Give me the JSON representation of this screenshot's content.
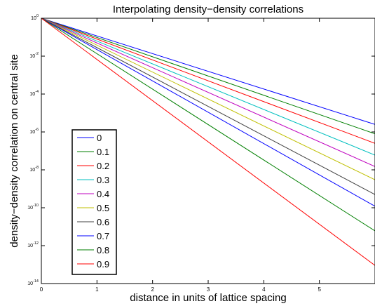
{
  "chart_data": {
    "type": "line",
    "title": "Interpolating density−density correlations",
    "xlabel": "distance in units of lattice spacing",
    "ylabel": "density−density correlation on central site",
    "xlim": [
      0,
      6
    ],
    "ylim": [
      1e-14,
      1
    ],
    "yscale": "log",
    "grid": false,
    "legend_position": "bottom-left",
    "x_ticks": [
      0,
      1,
      2,
      3,
      4,
      5
    ],
    "x_tick_labels": [
      "0",
      "1",
      "2",
      "3",
      "4",
      "5"
    ],
    "y_ticks": [
      1.0,
      0.01,
      0.0001,
      1e-06,
      1e-08,
      1e-10,
      1e-12,
      1e-14
    ],
    "y_tick_labels": [
      {
        "base": "10",
        "exp": "0"
      },
      {
        "base": "10",
        "exp": "-2"
      },
      {
        "base": "10",
        "exp": "-4"
      },
      {
        "base": "10",
        "exp": "-6"
      },
      {
        "base": "10",
        "exp": "-8"
      },
      {
        "base": "10",
        "exp": "-10"
      },
      {
        "base": "10",
        "exp": "-12"
      },
      {
        "base": "10",
        "exp": "-14"
      }
    ],
    "series": [
      {
        "name": "0",
        "color": "#0000ff",
        "x": [
          0,
          6
        ],
        "y": [
          1,
          2.5e-06
        ]
      },
      {
        "name": "0.1",
        "color": "#007f00",
        "x": [
          0,
          6
        ],
        "y": [
          1,
          8e-07
        ]
      },
      {
        "name": "0.2",
        "color": "#ff0000",
        "x": [
          0,
          6
        ],
        "y": [
          1,
          2.5e-07
        ]
      },
      {
        "name": "0.3",
        "color": "#00bfbf",
        "x": [
          0,
          6
        ],
        "y": [
          1,
          6e-08
        ]
      },
      {
        "name": "0.4",
        "color": "#bf00bf",
        "x": [
          0,
          6
        ],
        "y": [
          1,
          1.5e-08
        ]
      },
      {
        "name": "0.5",
        "color": "#bfbf00",
        "x": [
          0,
          6
        ],
        "y": [
          1,
          3e-09
        ]
      },
      {
        "name": "0.6",
        "color": "#404040",
        "x": [
          0,
          6
        ],
        "y": [
          1,
          5e-10
        ]
      },
      {
        "name": "0.7",
        "color": "#0000ff",
        "x": [
          0,
          6
        ],
        "y": [
          1,
          1.2e-10
        ]
      },
      {
        "name": "0.8",
        "color": "#007f00",
        "x": [
          0,
          6
        ],
        "y": [
          1,
          6e-12
        ]
      },
      {
        "name": "0.9",
        "color": "#ff0000",
        "x": [
          0,
          6
        ],
        "y": [
          1,
          9e-14
        ]
      }
    ]
  }
}
